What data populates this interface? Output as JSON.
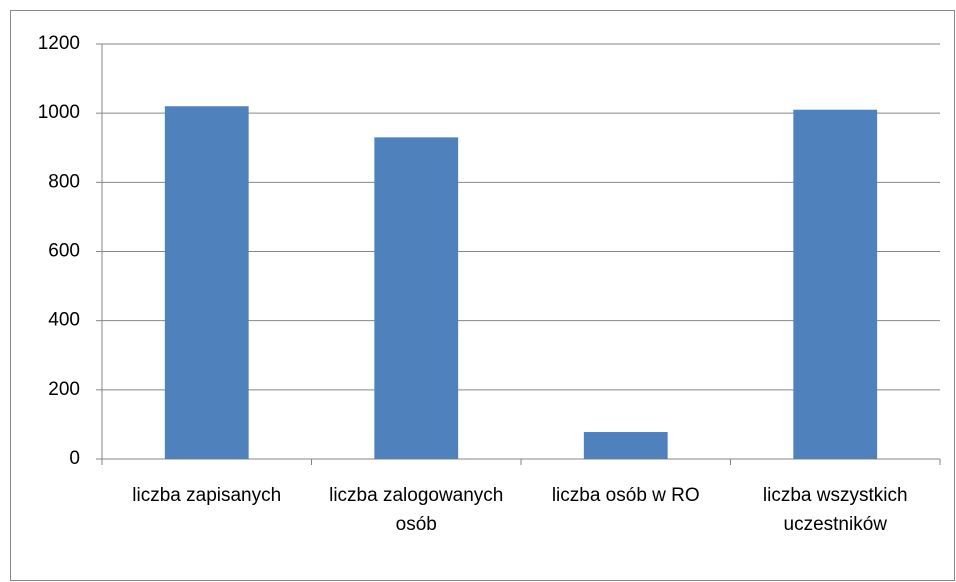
{
  "chart_data": {
    "type": "bar",
    "categories": [
      "liczba zapisanych",
      "liczba zalogowanych osób",
      "liczba osób w RO",
      "liczba wszystkich uczestników"
    ],
    "values": [
      1020,
      930,
      78,
      1010
    ],
    "color": "#4f81bd",
    "ylim": [
      0,
      1200
    ],
    "yticks": [
      0,
      200,
      400,
      600,
      800,
      1000,
      1200
    ],
    "grid": true
  }
}
